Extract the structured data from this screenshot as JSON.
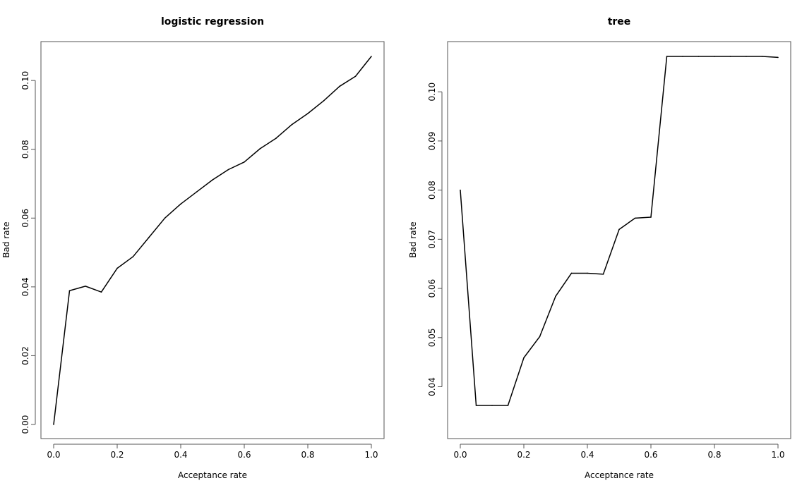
{
  "chart_data": [
    {
      "type": "line",
      "title": "logistic regression",
      "xlabel": "Acceptance rate",
      "ylabel": "Bad rate",
      "xlim": [
        0,
        1
      ],
      "ylim": [
        0,
        0.107
      ],
      "xticks": [
        "0.0",
        "0.2",
        "0.4",
        "0.6",
        "0.8",
        "1.0"
      ],
      "yticks": [
        "0.00",
        "0.02",
        "0.04",
        "0.06",
        "0.08",
        "0.10"
      ],
      "grid": false,
      "x": [
        0,
        0.05,
        0.1,
        0.15,
        0.2,
        0.25,
        0.3,
        0.35,
        0.4,
        0.45,
        0.5,
        0.55,
        0.6,
        0.65,
        0.7,
        0.75,
        0.8,
        0.85,
        0.9,
        0.95,
        1.0
      ],
      "y": [
        0.0,
        0.0389,
        0.0402,
        0.0385,
        0.0454,
        0.0488,
        0.0544,
        0.06,
        0.0641,
        0.0676,
        0.0711,
        0.0741,
        0.0763,
        0.0802,
        0.0832,
        0.0872,
        0.0904,
        0.0941,
        0.0983,
        0.1012,
        0.107
      ],
      "color": "#000000"
    },
    {
      "type": "line",
      "title": "tree",
      "xlabel": "Acceptance rate",
      "ylabel": "Bad rate",
      "xlim": [
        0,
        1
      ],
      "ylim": [
        0.0362,
        0.1072
      ],
      "xticks": [
        "0.0",
        "0.2",
        "0.4",
        "0.6",
        "0.8",
        "1.0"
      ],
      "yticks": [
        "0.04",
        "0.05",
        "0.06",
        "0.07",
        "0.08",
        "0.09",
        "0.10"
      ],
      "grid": false,
      "x": [
        0,
        0.05,
        0.1,
        0.15,
        0.2,
        0.25,
        0.3,
        0.35,
        0.4,
        0.45,
        0.5,
        0.55,
        0.6,
        0.65,
        0.7,
        0.75,
        0.8,
        0.85,
        0.9,
        0.95,
        1.0
      ],
      "y": [
        0.08,
        0.0362,
        0.0362,
        0.0362,
        0.0459,
        0.0502,
        0.0584,
        0.0631,
        0.0631,
        0.0629,
        0.072,
        0.0743,
        0.0745,
        0.1072,
        0.1072,
        0.1072,
        0.1072,
        0.1072,
        0.1072,
        0.1072,
        0.107
      ],
      "color": "#000000"
    }
  ]
}
